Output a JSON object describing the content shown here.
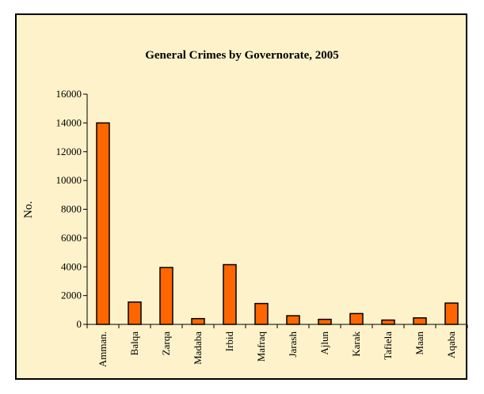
{
  "colors": {
    "background": "#FDF2C9",
    "bar_fill": "#FF6600",
    "bar_stroke": "#000000",
    "axis": "#000000"
  },
  "chart_data": {
    "type": "bar",
    "title": "General Crimes by Governorate, 2005",
    "xlabel": "",
    "ylabel": "No.",
    "ylim": [
      0,
      16000
    ],
    "yticks": [
      0,
      2000,
      4000,
      6000,
      8000,
      10000,
      12000,
      14000,
      16000
    ],
    "grid": false,
    "legend": "none",
    "categories": [
      "Amman.",
      "Balqa",
      "Zarqa",
      "Madaba",
      "Irbid",
      "Mafraq",
      "Jarash",
      "Ajlun",
      "Karak",
      "Tafiela",
      "Maan",
      "Aqaba"
    ],
    "values": [
      14000,
      1550,
      3950,
      400,
      4150,
      1450,
      600,
      350,
      750,
      300,
      450,
      1480
    ]
  }
}
